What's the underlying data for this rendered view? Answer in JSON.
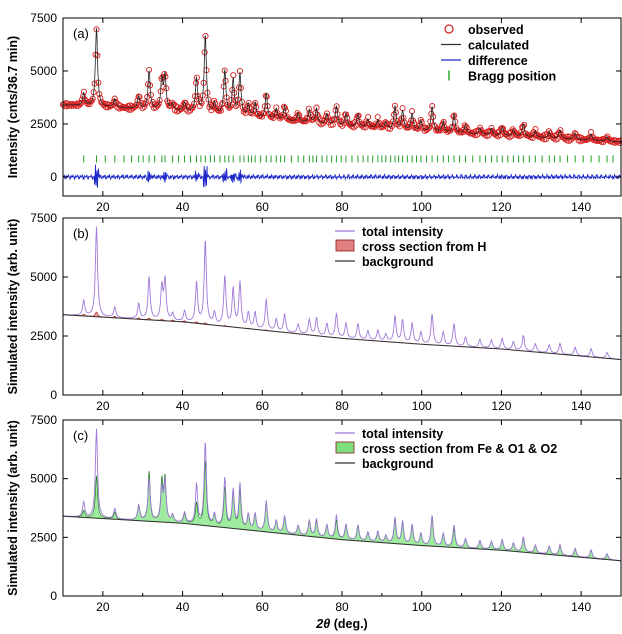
{
  "figure": {
    "xlabel_sym": "2θ",
    "xlabel_unit": " (deg.)"
  },
  "chart_data": [
    {
      "type": "line",
      "panel_label": "(a)",
      "ylabel": "Intensity (cnts/36.7 min)",
      "xlim": [
        10,
        150
      ],
      "ylim": [
        -900,
        7500
      ],
      "xticks": [
        20,
        40,
        60,
        80,
        100,
        120,
        140
      ],
      "yticks": [
        0,
        2500,
        5000,
        7500
      ],
      "legend": {
        "position": "top-right",
        "entries": [
          {
            "label": "observed",
            "marker": "circle",
            "color": "#d62020"
          },
          {
            "label": "calculated",
            "marker": "line",
            "color": "#333333"
          },
          {
            "label": "difference",
            "marker": "line",
            "color": "#1e28c8"
          },
          {
            "label": "Bragg position",
            "marker": "tick",
            "color": "#22a022"
          }
        ]
      },
      "colors": {
        "observed": "#d62020",
        "calculated": "#222222",
        "difference": "#1e28c8",
        "bragg": "#22a022"
      },
      "baseline": [
        [
          10,
          3400
        ],
        [
          40,
          3100
        ],
        [
          60,
          2750
        ],
        [
          80,
          2400
        ],
        [
          100,
          2150
        ],
        [
          120,
          1950
        ],
        [
          150,
          1650
        ]
      ],
      "peaks": [
        [
          15.2,
          600
        ],
        [
          18.4,
          3700
        ],
        [
          23,
          400
        ],
        [
          29,
          600
        ],
        [
          31.6,
          1800
        ],
        [
          34.8,
          1400
        ],
        [
          35.6,
          1600
        ],
        [
          37.5,
          300
        ],
        [
          40.5,
          400
        ],
        [
          43.5,
          1600
        ],
        [
          45.7,
          3700
        ],
        [
          48,
          500
        ],
        [
          50.6,
          2100
        ],
        [
          52.7,
          1700
        ],
        [
          54.4,
          2000
        ],
        [
          56.5,
          600
        ],
        [
          58.2,
          700
        ],
        [
          61,
          1200
        ],
        [
          63.5,
          500
        ],
        [
          65.6,
          700
        ],
        [
          69,
          400
        ],
        [
          71.8,
          600
        ],
        [
          73.6,
          700
        ],
        [
          76.2,
          500
        ],
        [
          78.6,
          900
        ],
        [
          81,
          600
        ],
        [
          84,
          600
        ],
        [
          86.5,
          400
        ],
        [
          89,
          400
        ],
        [
          91,
          300
        ],
        [
          93.3,
          1100
        ],
        [
          95.2,
          900
        ],
        [
          97.6,
          800
        ],
        [
          99.8,
          500
        ],
        [
          102.6,
          1200
        ],
        [
          105.4,
          500
        ],
        [
          108.1,
          900
        ],
        [
          111,
          400
        ],
        [
          114.6,
          300
        ],
        [
          117.5,
          300
        ],
        [
          120.2,
          400
        ],
        [
          123,
          300
        ],
        [
          125.5,
          600
        ],
        [
          128.5,
          300
        ],
        [
          132,
          300
        ],
        [
          134.7,
          400
        ],
        [
          138.5,
          300
        ],
        [
          142.5,
          300
        ],
        [
          146.5,
          200
        ]
      ],
      "difference_offset": 0,
      "bragg_y": 850,
      "bragg_positions": [
        15.2,
        18.4,
        20.6,
        23,
        25.3,
        27.2,
        29,
        30.1,
        31.6,
        33,
        34.8,
        35.6,
        37.5,
        39,
        40.5,
        42,
        43.5,
        44.6,
        45.7,
        47,
        48,
        49.4,
        50.6,
        51.6,
        52.7,
        54.4,
        55.4,
        56.5,
        57.3,
        58.2,
        59.6,
        61,
        62.2,
        63.5,
        64.6,
        65.6,
        67.3,
        69,
        70.4,
        71.8,
        72.7,
        73.6,
        75,
        76.2,
        77.4,
        78.6,
        79.8,
        81,
        82.5,
        84,
        85.3,
        86.5,
        87.7,
        89,
        90,
        91,
        92.2,
        93.3,
        94.2,
        95.2,
        96.4,
        97.6,
        98.7,
        99.8,
        101.2,
        102.6,
        104,
        105.4,
        106.7,
        108.1,
        109.5,
        111,
        112.8,
        114.6,
        116,
        117.5,
        118.9,
        120.2,
        121.6,
        123,
        124.3,
        125.5,
        127,
        128.5,
        130.2,
        132,
        133.3,
        134.7,
        136.6,
        138.5,
        140.5,
        142.5,
        144.5,
        146.5,
        148
      ]
    },
    {
      "type": "area",
      "panel_label": "(b)",
      "ylabel": "Simulated intensity (arb. unit)",
      "xlim": [
        10,
        150
      ],
      "ylim": [
        0,
        7500
      ],
      "xticks": [
        20,
        40,
        60,
        80,
        100,
        120,
        140
      ],
      "yticks": [
        0,
        2500,
        5000,
        7500
      ],
      "legend": {
        "position": "top-right",
        "entries": [
          {
            "label": "total intensity",
            "marker": "line",
            "color": "#a07ad8"
          },
          {
            "label": "cross section from H",
            "marker": "box",
            "color": "#e08080"
          },
          {
            "label": "background",
            "marker": "line",
            "color": "#333333"
          }
        ]
      },
      "colors": {
        "total": "#a07ad8",
        "fill": "#f2a0a0",
        "fill_edge": "#b02020",
        "background": "#333333"
      },
      "baseline": [
        [
          10,
          3400
        ],
        [
          40,
          3100
        ],
        [
          60,
          2750
        ],
        [
          80,
          2400
        ],
        [
          100,
          2150
        ],
        [
          120,
          1950
        ],
        [
          150,
          1500
        ]
      ],
      "total_peaks": [
        [
          15.2,
          650
        ],
        [
          18.4,
          3800
        ],
        [
          23,
          450
        ],
        [
          29,
          650
        ],
        [
          31.6,
          1800
        ],
        [
          34.8,
          1400
        ],
        [
          35.6,
          1700
        ],
        [
          37.5,
          300
        ],
        [
          40.5,
          450
        ],
        [
          43.5,
          1700
        ],
        [
          45.7,
          3550
        ],
        [
          48,
          500
        ],
        [
          50.6,
          2100
        ],
        [
          52.7,
          1600
        ],
        [
          54.4,
          1900
        ],
        [
          56.5,
          650
        ],
        [
          58.2,
          700
        ],
        [
          61,
          1300
        ],
        [
          63.5,
          500
        ],
        [
          65.6,
          750
        ],
        [
          69,
          400
        ],
        [
          71.8,
          650
        ],
        [
          73.6,
          750
        ],
        [
          76.2,
          550
        ],
        [
          78.6,
          1000
        ],
        [
          81,
          650
        ],
        [
          84,
          650
        ],
        [
          86.5,
          400
        ],
        [
          89,
          450
        ],
        [
          91,
          300
        ],
        [
          93.3,
          1100
        ],
        [
          95.2,
          950
        ],
        [
          97.6,
          850
        ],
        [
          99.8,
          500
        ],
        [
          102.6,
          1300
        ],
        [
          105.4,
          550
        ],
        [
          108.1,
          950
        ],
        [
          111,
          400
        ],
        [
          114.6,
          350
        ],
        [
          117.5,
          350
        ],
        [
          120.2,
          450
        ],
        [
          123,
          350
        ],
        [
          125.5,
          650
        ],
        [
          128.5,
          350
        ],
        [
          132,
          350
        ],
        [
          134.7,
          450
        ],
        [
          138.5,
          350
        ],
        [
          142.5,
          350
        ],
        [
          146.5,
          250
        ]
      ],
      "fill_peaks": [
        [
          15.2,
          80
        ],
        [
          18.4,
          200
        ],
        [
          23,
          60
        ],
        [
          29,
          50
        ],
        [
          31.6,
          70
        ],
        [
          34.8,
          60
        ],
        [
          37.5,
          50
        ],
        [
          40.5,
          50
        ],
        [
          43.5,
          60
        ],
        [
          45.7,
          50
        ],
        [
          50.6,
          30
        ],
        [
          56.5,
          20
        ],
        [
          61,
          20
        ]
      ]
    },
    {
      "type": "area",
      "panel_label": "(c)",
      "ylabel": "Simulated intensity (arb. unit)",
      "xlim": [
        10,
        150
      ],
      "ylim": [
        0,
        7500
      ],
      "xticks": [
        20,
        40,
        60,
        80,
        100,
        120,
        140
      ],
      "yticks": [
        0,
        2500,
        5000,
        7500
      ],
      "xlabel": "2θ (deg.)",
      "legend": {
        "position": "top-right",
        "entries": [
          {
            "label": "total intensity",
            "marker": "line",
            "color": "#a07ad8"
          },
          {
            "label": "cross section from Fe & O1 & O2",
            "marker": "box",
            "color": "#7ee07e"
          },
          {
            "label": "background",
            "marker": "line",
            "color": "#333333"
          }
        ]
      },
      "colors": {
        "total": "#a07ad8",
        "fill": "#8ee88e",
        "fill_edge": "#1a7a1a",
        "background": "#333333"
      },
      "baseline": [
        [
          10,
          3400
        ],
        [
          40,
          3100
        ],
        [
          60,
          2750
        ],
        [
          80,
          2400
        ],
        [
          100,
          2150
        ],
        [
          120,
          1950
        ],
        [
          150,
          1500
        ]
      ],
      "total_peaks": [
        [
          15.2,
          650
        ],
        [
          18.4,
          3800
        ],
        [
          23,
          450
        ],
        [
          29,
          650
        ],
        [
          31.6,
          1800
        ],
        [
          34.8,
          1400
        ],
        [
          35.6,
          1700
        ],
        [
          37.5,
          300
        ],
        [
          40.5,
          450
        ],
        [
          43.5,
          1700
        ],
        [
          45.7,
          3550
        ],
        [
          48,
          500
        ],
        [
          50.6,
          2100
        ],
        [
          52.7,
          1600
        ],
        [
          54.4,
          1900
        ],
        [
          56.5,
          650
        ],
        [
          58.2,
          700
        ],
        [
          61,
          1300
        ],
        [
          63.5,
          500
        ],
        [
          65.6,
          750
        ],
        [
          69,
          400
        ],
        [
          71.8,
          650
        ],
        [
          73.6,
          750
        ],
        [
          76.2,
          550
        ],
        [
          78.6,
          1000
        ],
        [
          81,
          650
        ],
        [
          84,
          650
        ],
        [
          86.5,
          400
        ],
        [
          89,
          450
        ],
        [
          91,
          300
        ],
        [
          93.3,
          1100
        ],
        [
          95.2,
          950
        ],
        [
          97.6,
          850
        ],
        [
          99.8,
          500
        ],
        [
          102.6,
          1300
        ],
        [
          105.4,
          550
        ],
        [
          108.1,
          950
        ],
        [
          111,
          400
        ],
        [
          114.6,
          350
        ],
        [
          117.5,
          350
        ],
        [
          120.2,
          450
        ],
        [
          123,
          350
        ],
        [
          125.5,
          650
        ],
        [
          128.5,
          350
        ],
        [
          132,
          350
        ],
        [
          134.7,
          450
        ],
        [
          138.5,
          350
        ],
        [
          142.5,
          350
        ],
        [
          146.5,
          250
        ]
      ],
      "fill_peaks": [
        [
          15.2,
          300
        ],
        [
          18.4,
          1800
        ],
        [
          23,
          300
        ],
        [
          29,
          650
        ],
        [
          31.6,
          2100
        ],
        [
          34.8,
          1700
        ],
        [
          35.6,
          1800
        ],
        [
          37.5,
          300
        ],
        [
          40.5,
          400
        ],
        [
          43.5,
          900
        ],
        [
          45.7,
          2800
        ],
        [
          48,
          500
        ],
        [
          50.6,
          1700
        ],
        [
          52.7,
          1500
        ],
        [
          54.4,
          1600
        ],
        [
          56.5,
          650
        ],
        [
          58.2,
          700
        ],
        [
          61,
          1300
        ],
        [
          63.5,
          500
        ],
        [
          65.6,
          700
        ],
        [
          69,
          400
        ],
        [
          71.8,
          650
        ],
        [
          73.6,
          700
        ],
        [
          76.2,
          550
        ],
        [
          78.6,
          800
        ],
        [
          81,
          650
        ],
        [
          84,
          650
        ],
        [
          86.5,
          400
        ],
        [
          89,
          450
        ],
        [
          91,
          300
        ],
        [
          93.3,
          1000
        ],
        [
          95.2,
          900
        ],
        [
          97.6,
          800
        ],
        [
          99.8,
          500
        ],
        [
          102.6,
          1300
        ],
        [
          105.4,
          550
        ],
        [
          108.1,
          800
        ],
        [
          111,
          400
        ],
        [
          114.6,
          350
        ],
        [
          117.5,
          350
        ],
        [
          120.2,
          450
        ],
        [
          123,
          350
        ],
        [
          125.5,
          600
        ],
        [
          128.5,
          350
        ],
        [
          132,
          350
        ],
        [
          134.7,
          450
        ],
        [
          138.5,
          350
        ],
        [
          142.5,
          350
        ],
        [
          146.5,
          250
        ]
      ]
    }
  ]
}
